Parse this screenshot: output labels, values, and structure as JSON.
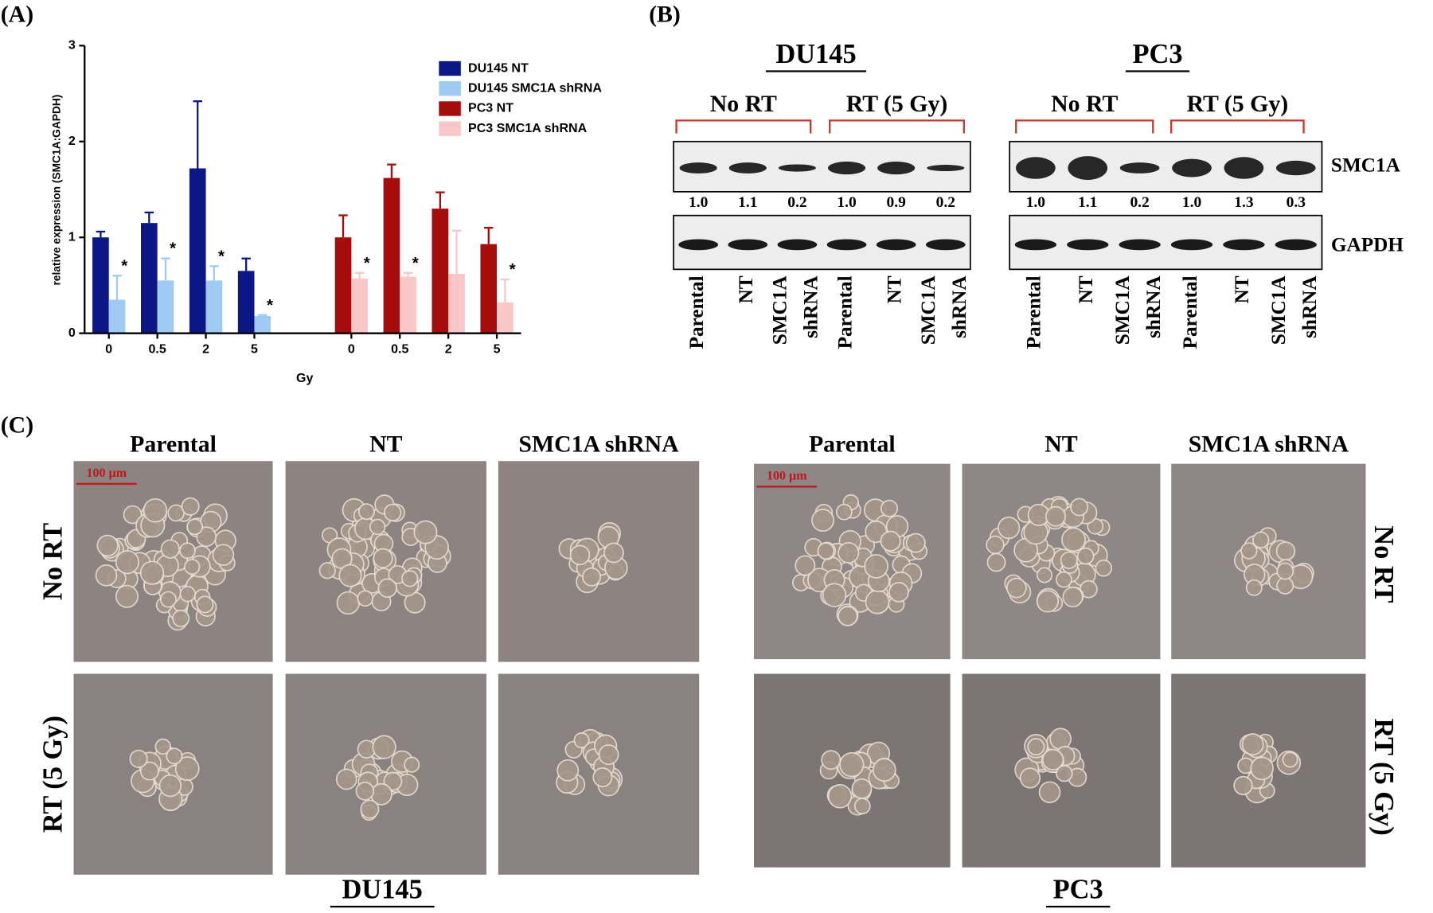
{
  "chart_data": {
    "type": "bar",
    "panel_label": "(A)",
    "y_label": "relative expression (SMC1A:GAPDH)",
    "x_label": "Gy",
    "categories": [
      "0",
      "0.5",
      "2",
      "5",
      null,
      "0",
      "0.5",
      "2",
      "5"
    ],
    "ylim": [
      0,
      3
    ],
    "yticks": [
      0,
      1,
      2,
      3
    ],
    "legend": "upper right",
    "series": [
      {
        "name": "DU145 NT",
        "color": "#0c1785",
        "values": [
          1.0,
          1.15,
          1.72,
          0.65,
          null,
          null,
          null,
          null,
          null
        ],
        "errors": [
          0.06,
          0.11,
          0.7,
          0.13,
          null,
          null,
          null,
          null,
          null
        ]
      },
      {
        "name": "DU145 SMC1A shRNA",
        "color": "#9fcbf2",
        "values": [
          0.35,
          0.55,
          0.55,
          0.18,
          null,
          null,
          null,
          null,
          null
        ],
        "errors": [
          0.25,
          0.23,
          0.15,
          0.01,
          null,
          null,
          null,
          null,
          null
        ],
        "significance": [
          "*",
          "*",
          "*",
          "*",
          null,
          null,
          null,
          null,
          null
        ]
      },
      {
        "name": "PC3 NT",
        "color": "#a50d0d",
        "values": [
          null,
          null,
          null,
          null,
          null,
          1.0,
          1.62,
          1.3,
          0.93
        ],
        "errors": [
          null,
          null,
          null,
          null,
          null,
          0.23,
          0.14,
          0.17,
          0.17
        ]
      },
      {
        "name": "PC3 SMC1A shRNA",
        "color": "#f9c7c7",
        "values": [
          null,
          null,
          null,
          null,
          null,
          0.57,
          0.59,
          0.62,
          0.32
        ],
        "errors": [
          null,
          null,
          null,
          null,
          null,
          0.06,
          0.04,
          0.45,
          0.24
        ],
        "significance": [
          null,
          null,
          null,
          null,
          null,
          "*",
          "*",
          null,
          "*"
        ]
      }
    ]
  },
  "blot": {
    "panel_label": "(B)",
    "proteins": [
      "SMC1A",
      "GAPDH"
    ],
    "lanes": [
      [
        "Parental"
      ],
      [
        "NT"
      ],
      [
        "SMC1A",
        "shRNA"
      ]
    ],
    "groups": [
      {
        "title": "DU145",
        "conditions": [
          "No RT",
          "RT (5 Gy)"
        ],
        "quant": [
          "1.0",
          "1.1",
          "0.2",
          "1.0",
          "0.9",
          "0.2"
        ]
      },
      {
        "title": "PC3",
        "conditions": [
          "No RT",
          "RT (5 Gy)"
        ],
        "quant": [
          "1.0",
          "1.1",
          "0.2",
          "1.0",
          "1.3",
          "0.3"
        ]
      }
    ]
  },
  "micrographs": {
    "panel_label": "(C)",
    "columns": [
      "Parental",
      "NT",
      "SMC1A shRNA"
    ],
    "rows": [
      "No RT",
      "RT (5 Gy)"
    ],
    "cell_lines": [
      "DU145",
      "PC3"
    ],
    "scale_bar": "100 µm"
  }
}
